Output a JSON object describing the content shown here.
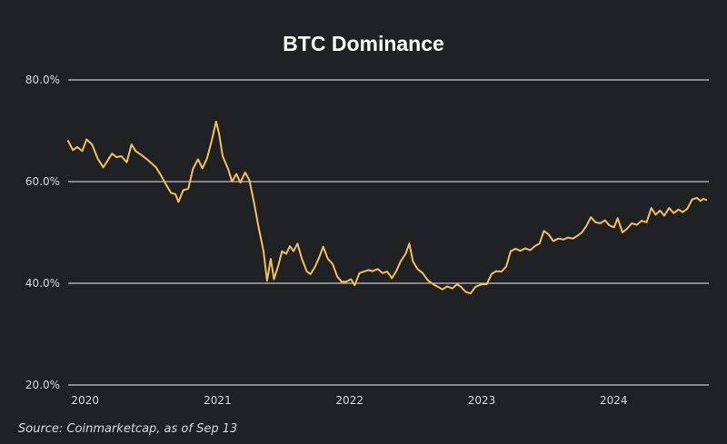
{
  "chart_data": {
    "type": "line",
    "title": "BTC Dominance",
    "source": "Source: Coinmarketcap, as of Sep 13",
    "ylim": [
      20,
      80
    ],
    "yticks": [
      {
        "value": 20,
        "label": "20.0%"
      },
      {
        "value": 40,
        "label": "40.0%"
      },
      {
        "value": 60,
        "label": "60.0%"
      },
      {
        "value": 80,
        "label": "80.0%"
      }
    ],
    "xlim": [
      "2019-11-15",
      "2024-09-20"
    ],
    "xticks": [
      {
        "date": "2020-01-01",
        "label": "2020"
      },
      {
        "date": "2021-01-01",
        "label": "2021"
      },
      {
        "date": "2022-01-01",
        "label": "2022"
      },
      {
        "date": "2023-01-01",
        "label": "2023"
      },
      {
        "date": "2024-01-01",
        "label": "2024"
      }
    ],
    "grid": "horizontal",
    "colors": {
      "background": "#202125",
      "line": "#f2c158",
      "grid": "#ffffff",
      "text": "#d8d8d8",
      "title": "#ffffff"
    },
    "series": [
      {
        "points": [
          [
            "2019-11-15",
            68.0
          ],
          [
            "2019-11-28",
            66.2
          ],
          [
            "2019-12-10",
            66.8
          ],
          [
            "2019-12-24",
            66.0
          ],
          [
            "2020-01-05",
            68.3
          ],
          [
            "2020-01-20",
            67.3
          ],
          [
            "2020-02-05",
            64.5
          ],
          [
            "2020-02-20",
            62.8
          ],
          [
            "2020-03-02",
            64.0
          ],
          [
            "2020-03-15",
            65.5
          ],
          [
            "2020-03-28",
            64.8
          ],
          [
            "2020-04-10",
            65.0
          ],
          [
            "2020-04-25",
            63.8
          ],
          [
            "2020-05-08",
            67.3
          ],
          [
            "2020-05-20",
            66.0
          ],
          [
            "2020-06-03",
            65.3
          ],
          [
            "2020-06-18",
            64.5
          ],
          [
            "2020-07-02",
            63.6
          ],
          [
            "2020-07-15",
            62.8
          ],
          [
            "2020-07-28",
            61.3
          ],
          [
            "2020-08-10",
            59.6
          ],
          [
            "2020-08-25",
            57.8
          ],
          [
            "2020-09-07",
            57.5
          ],
          [
            "2020-09-15",
            56.0
          ],
          [
            "2020-09-28",
            58.3
          ],
          [
            "2020-10-12",
            58.6
          ],
          [
            "2020-10-25",
            62.5
          ],
          [
            "2020-11-08",
            64.4
          ],
          [
            "2020-11-20",
            62.6
          ],
          [
            "2020-12-03",
            64.6
          ],
          [
            "2020-12-15",
            67.8
          ],
          [
            "2020-12-28",
            71.8
          ],
          [
            "2021-01-05",
            69.5
          ],
          [
            "2021-01-15",
            65.0
          ],
          [
            "2021-01-30",
            62.5
          ],
          [
            "2021-02-10",
            60.0
          ],
          [
            "2021-02-22",
            61.5
          ],
          [
            "2021-03-05",
            59.8
          ],
          [
            "2021-03-18",
            61.8
          ],
          [
            "2021-03-30",
            60.3
          ],
          [
            "2021-04-12",
            55.8
          ],
          [
            "2021-04-25",
            50.8
          ],
          [
            "2021-05-08",
            46.3
          ],
          [
            "2021-05-18",
            40.5
          ],
          [
            "2021-05-28",
            44.8
          ],
          [
            "2021-06-06",
            40.8
          ],
          [
            "2021-06-18",
            43.5
          ],
          [
            "2021-06-28",
            46.3
          ],
          [
            "2021-07-10",
            45.8
          ],
          [
            "2021-07-20",
            47.3
          ],
          [
            "2021-07-30",
            46.3
          ],
          [
            "2021-08-10",
            47.8
          ],
          [
            "2021-08-22",
            44.8
          ],
          [
            "2021-09-05",
            42.3
          ],
          [
            "2021-09-15",
            41.8
          ],
          [
            "2021-09-28",
            43.3
          ],
          [
            "2021-10-10",
            45.3
          ],
          [
            "2021-10-20",
            47.2
          ],
          [
            "2021-11-02",
            44.8
          ],
          [
            "2021-11-15",
            43.8
          ],
          [
            "2021-11-28",
            41.3
          ],
          [
            "2021-12-10",
            40.3
          ],
          [
            "2021-12-22",
            40.3
          ],
          [
            "2022-01-05",
            40.8
          ],
          [
            "2022-01-15",
            39.6
          ],
          [
            "2022-01-28",
            42.0
          ],
          [
            "2022-02-10",
            42.3
          ],
          [
            "2022-02-22",
            42.6
          ],
          [
            "2022-03-05",
            42.4
          ],
          [
            "2022-03-20",
            42.8
          ],
          [
            "2022-04-02",
            42.0
          ],
          [
            "2022-04-15",
            42.3
          ],
          [
            "2022-04-28",
            41.0
          ],
          [
            "2022-05-10",
            42.4
          ],
          [
            "2022-05-22",
            44.3
          ],
          [
            "2022-06-05",
            45.8
          ],
          [
            "2022-06-15",
            47.8
          ],
          [
            "2022-06-25",
            44.3
          ],
          [
            "2022-07-08",
            42.8
          ],
          [
            "2022-07-22",
            42.0
          ],
          [
            "2022-08-05",
            40.6
          ],
          [
            "2022-08-20",
            39.8
          ],
          [
            "2022-09-02",
            39.3
          ],
          [
            "2022-09-15",
            38.8
          ],
          [
            "2022-09-28",
            39.4
          ],
          [
            "2022-10-12",
            39.0
          ],
          [
            "2022-10-25",
            39.8
          ],
          [
            "2022-11-05",
            39.3
          ],
          [
            "2022-11-18",
            38.3
          ],
          [
            "2022-12-01",
            38.0
          ],
          [
            "2022-12-15",
            39.3
          ],
          [
            "2023-01-01",
            39.8
          ],
          [
            "2023-01-15",
            39.8
          ],
          [
            "2023-01-28",
            41.8
          ],
          [
            "2023-02-10",
            42.4
          ],
          [
            "2023-02-25",
            42.3
          ],
          [
            "2023-03-10",
            43.3
          ],
          [
            "2023-03-22",
            46.3
          ],
          [
            "2023-04-05",
            46.8
          ],
          [
            "2023-04-18",
            46.4
          ],
          [
            "2023-05-02",
            46.9
          ],
          [
            "2023-05-15",
            46.5
          ],
          [
            "2023-05-28",
            47.3
          ],
          [
            "2023-06-10",
            47.8
          ],
          [
            "2023-06-22",
            50.3
          ],
          [
            "2023-07-05",
            49.6
          ],
          [
            "2023-07-18",
            48.3
          ],
          [
            "2023-08-01",
            48.8
          ],
          [
            "2023-08-15",
            48.6
          ],
          [
            "2023-08-28",
            49.0
          ],
          [
            "2023-09-10",
            48.8
          ],
          [
            "2023-09-22",
            49.3
          ],
          [
            "2023-10-05",
            50.0
          ],
          [
            "2023-10-18",
            51.3
          ],
          [
            "2023-10-30",
            53.0
          ],
          [
            "2023-11-12",
            52.0
          ],
          [
            "2023-11-25",
            51.8
          ],
          [
            "2023-12-08",
            52.4
          ],
          [
            "2023-12-20",
            51.4
          ],
          [
            "2024-01-02",
            51.0
          ],
          [
            "2024-01-12",
            52.8
          ],
          [
            "2024-01-25",
            50.0
          ],
          [
            "2024-02-08",
            50.8
          ],
          [
            "2024-02-20",
            51.8
          ],
          [
            "2024-03-05",
            51.5
          ],
          [
            "2024-03-18",
            52.3
          ],
          [
            "2024-04-01",
            52.0
          ],
          [
            "2024-04-14",
            54.8
          ],
          [
            "2024-04-26",
            53.5
          ],
          [
            "2024-05-08",
            54.3
          ],
          [
            "2024-05-20",
            53.3
          ],
          [
            "2024-06-02",
            54.8
          ],
          [
            "2024-06-15",
            53.8
          ],
          [
            "2024-06-28",
            54.5
          ],
          [
            "2024-07-10",
            54.0
          ],
          [
            "2024-07-22",
            54.6
          ],
          [
            "2024-08-05",
            56.5
          ],
          [
            "2024-08-18",
            56.8
          ],
          [
            "2024-08-28",
            56.2
          ],
          [
            "2024-09-05",
            56.6
          ],
          [
            "2024-09-13",
            56.4
          ]
        ]
      }
    ]
  }
}
